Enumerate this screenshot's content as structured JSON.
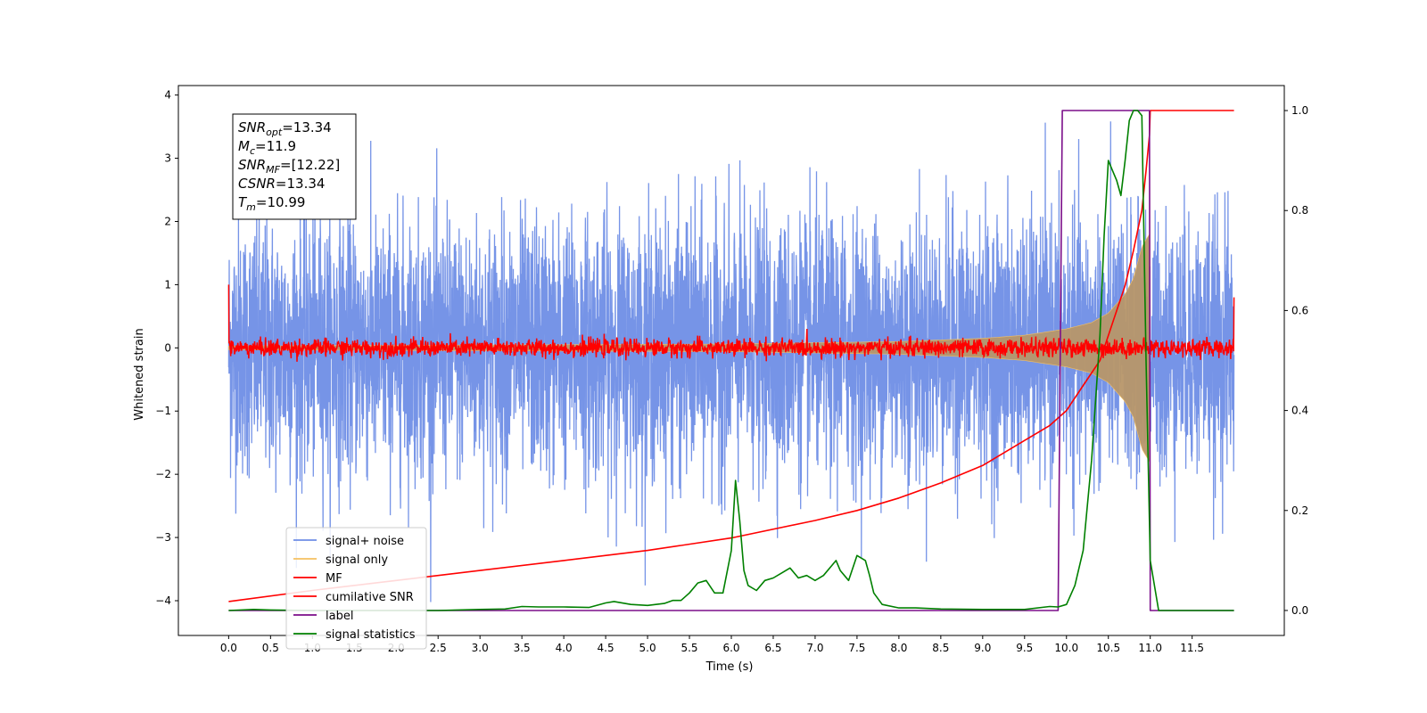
{
  "chart_data": {
    "type": "line",
    "xlabel": "Time (s)",
    "ylabel": "Whitened strain",
    "xlim": [
      -0.6,
      12.6
    ],
    "ylim": [
      -4.55,
      4.15
    ],
    "y2lim": [
      -0.05,
      1.05
    ],
    "x_ticks": [
      0.0,
      0.5,
      1.0,
      1.5,
      2.0,
      2.5,
      3.0,
      3.5,
      4.0,
      4.5,
      5.0,
      5.5,
      6.0,
      6.5,
      7.0,
      7.5,
      8.0,
      8.5,
      9.0,
      9.5,
      10.0,
      10.5,
      11.0,
      11.5
    ],
    "x_tick_labels": [
      "0.0",
      "0.5",
      "1.0",
      "1.5",
      "2.0",
      "2.5",
      "3.0",
      "3.5",
      "4.0",
      "4.5",
      "5.0",
      "5.5",
      "6.0",
      "6.5",
      "7.0",
      "7.5",
      "8.0",
      "8.5",
      "9.0",
      "9.5",
      "10.0",
      "10.5",
      "11.0",
      "11.5"
    ],
    "y_ticks": [
      -4,
      -3,
      -2,
      -1,
      0,
      1,
      2,
      3,
      4
    ],
    "y_tick_labels": [
      "−4",
      "−3",
      "−2",
      "−1",
      "0",
      "1",
      "2",
      "3",
      "4"
    ],
    "y2_ticks": [
      0.0,
      0.2,
      0.4,
      0.6,
      0.8,
      1.0
    ],
    "y2_tick_labels": [
      "0.0",
      "0.2",
      "0.4",
      "0.6",
      "0.8",
      "1.0"
    ],
    "grid": false,
    "legend_position": "lower-left",
    "annotation": [
      {
        "base": "SNR",
        "sub": "opt",
        "value": "=13.34"
      },
      {
        "base": "M",
        "sub": "c",
        "value": "=11.9"
      },
      {
        "base": "SNR",
        "sub": "MF",
        "value": "=[12.22]"
      },
      {
        "base": "CSNR",
        "sub": "",
        "value": "=13.34"
      },
      {
        "base": "T",
        "sub": "m",
        "value": "=10.99"
      }
    ],
    "series": [
      {
        "name": "signal+ noise",
        "axis": "left",
        "color": "#6f8ee6",
        "kind": "noise",
        "x_range": [
          0.0,
          12.0
        ],
        "amplitude_rms": 1.0,
        "peak_range": [
          -4.05,
          3.8
        ]
      },
      {
        "name": "signal only",
        "axis": "left",
        "color": "#f5c060",
        "kind": "chirp",
        "x_range": [
          0.0,
          10.99
        ],
        "envelope_x": [
          0.0,
          6.0,
          8.0,
          9.0,
          9.5,
          10.0,
          10.3,
          10.5,
          10.7,
          10.8,
          10.9,
          10.99
        ],
        "envelope_y": [
          0.03,
          0.06,
          0.1,
          0.15,
          0.2,
          0.3,
          0.4,
          0.55,
          0.85,
          1.1,
          1.6,
          1.8
        ]
      },
      {
        "name": "MF",
        "axis": "left",
        "color": "#ff0000",
        "kind": "noise",
        "x_range": [
          0.0,
          12.0
        ],
        "amplitude_rms": 0.07,
        "edge_values": [
          1.0,
          0.8
        ]
      },
      {
        "name": "cumilative SNR",
        "axis": "right",
        "color": "#ff0000",
        "x": [
          0.0,
          1.0,
          2.0,
          3.0,
          4.0,
          5.0,
          6.0,
          7.0,
          7.5,
          8.0,
          8.5,
          9.0,
          9.5,
          9.8,
          10.0,
          10.2,
          10.4,
          10.5,
          10.6,
          10.7,
          10.8,
          10.9,
          10.95,
          10.99,
          11.0,
          12.0
        ],
        "y": [
          0.018,
          0.04,
          0.06,
          0.08,
          0.1,
          0.12,
          0.145,
          0.18,
          0.2,
          0.225,
          0.255,
          0.29,
          0.34,
          0.37,
          0.4,
          0.45,
          0.5,
          0.55,
          0.6,
          0.65,
          0.72,
          0.8,
          0.88,
          0.95,
          1.0,
          1.0
        ]
      },
      {
        "name": "label",
        "axis": "right",
        "color": "#7b0e8a",
        "x": [
          0.0,
          9.9,
          9.95,
          10.99,
          11.0,
          12.0
        ],
        "y": [
          0.0,
          0.0,
          1.0,
          1.0,
          0.0,
          0.0
        ]
      },
      {
        "name": "signal statistics",
        "axis": "right",
        "color": "#008000",
        "x": [
          0.0,
          0.3,
          0.5,
          1.0,
          1.5,
          2.0,
          2.5,
          3.0,
          3.3,
          3.5,
          3.7,
          4.0,
          4.3,
          4.5,
          4.6,
          4.8,
          5.0,
          5.2,
          5.3,
          5.4,
          5.5,
          5.6,
          5.7,
          5.8,
          5.9,
          6.0,
          6.05,
          6.1,
          6.15,
          6.2,
          6.3,
          6.4,
          6.5,
          6.6,
          6.7,
          6.8,
          6.9,
          7.0,
          7.1,
          7.2,
          7.25,
          7.3,
          7.4,
          7.5,
          7.6,
          7.65,
          7.7,
          7.8,
          8.0,
          8.2,
          8.5,
          9.0,
          9.5,
          9.8,
          9.9,
          10.0,
          10.1,
          10.2,
          10.3,
          10.4,
          10.45,
          10.5,
          10.55,
          10.6,
          10.65,
          10.7,
          10.75,
          10.8,
          10.85,
          10.9,
          10.95,
          11.0,
          11.1,
          11.5,
          12.0
        ],
        "y": [
          0.0,
          0.002,
          0.001,
          0.0,
          0.0,
          0.0,
          0.0,
          0.002,
          0.003,
          0.008,
          0.007,
          0.007,
          0.006,
          0.015,
          0.018,
          0.012,
          0.01,
          0.014,
          0.02,
          0.02,
          0.035,
          0.055,
          0.06,
          0.035,
          0.035,
          0.12,
          0.26,
          0.18,
          0.08,
          0.05,
          0.04,
          0.06,
          0.065,
          0.075,
          0.085,
          0.065,
          0.07,
          0.06,
          0.07,
          0.09,
          0.1,
          0.08,
          0.06,
          0.11,
          0.1,
          0.07,
          0.035,
          0.012,
          0.005,
          0.005,
          0.003,
          0.002,
          0.002,
          0.008,
          0.007,
          0.012,
          0.05,
          0.12,
          0.3,
          0.55,
          0.75,
          0.9,
          0.88,
          0.86,
          0.83,
          0.9,
          0.98,
          1.0,
          1.0,
          0.99,
          0.5,
          0.1,
          0.0,
          0.0,
          0.0
        ]
      }
    ]
  }
}
